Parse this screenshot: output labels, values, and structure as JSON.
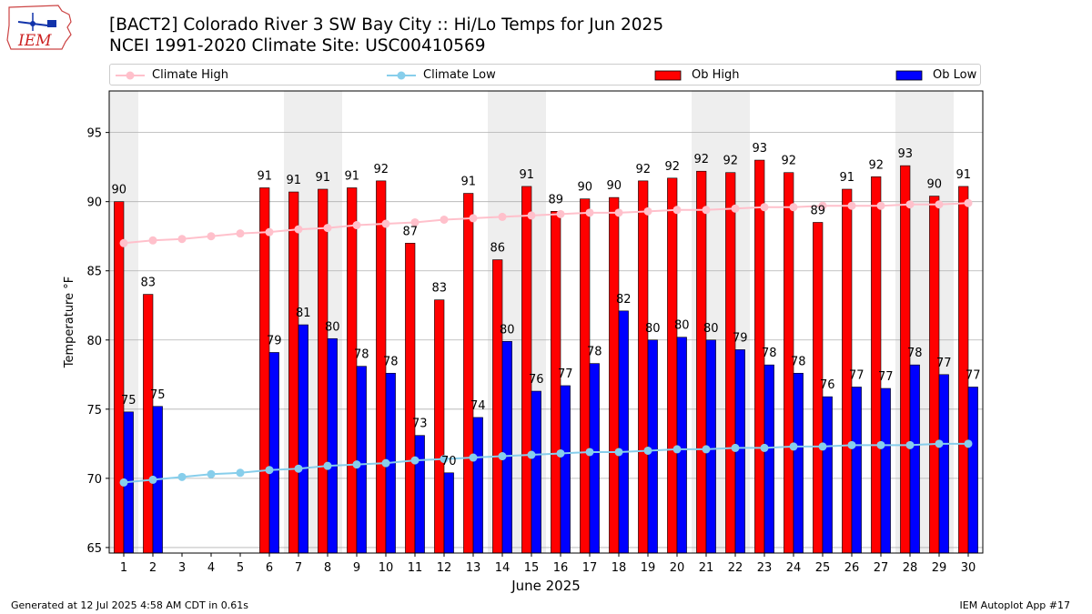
{
  "header": {
    "title_line1": "[BACT2] Colorado River 3 SW Bay City :: Hi/Lo Temps for Jun 2025",
    "title_line2": "NCEI 1991-2020 Climate Site: USC00410569",
    "logo_text": "IEM"
  },
  "footer": {
    "generated": "Generated at 12 Jul 2025 4:58 AM CDT in 0.61s",
    "app": "IEM Autoplot App #17"
  },
  "colors": {
    "ob_high": "#ff0000",
    "ob_low": "#0000ff",
    "climate_high": "#ffc0cb",
    "climate_low": "#87ceeb",
    "weekend_band": "#eeeeee",
    "grid": "#b0b0b0"
  },
  "chart_data": {
    "type": "bar",
    "xlabel": "June 2025",
    "ylabel": "Temperature °F",
    "ylim": [
      64.6,
      98
    ],
    "yticks": [
      65,
      70,
      75,
      80,
      85,
      90,
      95
    ],
    "grid": "horizontal",
    "legend_placement": "top",
    "categories": [
      "1",
      "2",
      "3",
      "4",
      "5",
      "6",
      "7",
      "8",
      "9",
      "10",
      "11",
      "12",
      "13",
      "14",
      "15",
      "16",
      "17",
      "18",
      "19",
      "20",
      "21",
      "22",
      "23",
      "24",
      "25",
      "26",
      "27",
      "28",
      "29",
      "30"
    ],
    "weekend_days": [
      1,
      7,
      8,
      14,
      15,
      21,
      22,
      28,
      29
    ],
    "series": [
      {
        "name": "Ob High",
        "kind": "bar",
        "values": [
          90,
          83.3,
          null,
          null,
          null,
          91,
          90.7,
          90.9,
          91,
          91.5,
          87,
          82.9,
          90.6,
          85.8,
          91.1,
          89.3,
          90.2,
          90.3,
          91.5,
          91.7,
          92.2,
          92.1,
          93,
          92.1,
          88.5,
          90.9,
          91.8,
          92.6,
          90.4,
          91.1
        ],
        "labels": [
          "90",
          "83",
          "",
          "",
          "",
          "91",
          "91",
          "91",
          "91",
          "92",
          "87",
          "83",
          "91",
          "86",
          "91",
          "89",
          "90",
          "90",
          "92",
          "92",
          "92",
          "92",
          "93",
          "92",
          "89",
          "91",
          "92",
          "93",
          "90",
          "91"
        ]
      },
      {
        "name": "Ob Low",
        "kind": "bar",
        "values": [
          74.8,
          75.2,
          null,
          null,
          null,
          79.1,
          81.1,
          80.1,
          78.1,
          77.6,
          73.1,
          70.4,
          74.4,
          79.9,
          76.3,
          76.7,
          78.3,
          82.1,
          80,
          80.2,
          80,
          79.3,
          78.2,
          77.6,
          75.9,
          76.6,
          76.5,
          78.2,
          77.5,
          76.6
        ],
        "labels": [
          "75",
          "75",
          "",
          "",
          "",
          "79",
          "81",
          "80",
          "78",
          "78",
          "73",
          "70",
          "74",
          "80",
          "76",
          "77",
          "78",
          "82",
          "80",
          "80",
          "80",
          "79",
          "78",
          "78",
          "76",
          "77",
          "77",
          "78",
          "77",
          "77"
        ]
      },
      {
        "name": "Climate High",
        "kind": "line",
        "values": [
          87,
          87.2,
          87.3,
          87.5,
          87.7,
          87.8,
          88,
          88.1,
          88.3,
          88.4,
          88.5,
          88.7,
          88.8,
          88.9,
          89,
          89.1,
          89.2,
          89.2,
          89.3,
          89.4,
          89.4,
          89.5,
          89.6,
          89.6,
          89.7,
          89.7,
          89.7,
          89.8,
          89.8,
          89.9
        ]
      },
      {
        "name": "Climate Low",
        "kind": "line",
        "values": [
          69.7,
          69.9,
          70.1,
          70.3,
          70.4,
          70.6,
          70.7,
          70.9,
          71,
          71.1,
          71.3,
          71.4,
          71.5,
          71.6,
          71.7,
          71.8,
          71.9,
          71.9,
          72,
          72.1,
          72.1,
          72.2,
          72.2,
          72.3,
          72.3,
          72.4,
          72.4,
          72.4,
          72.5,
          72.5
        ]
      }
    ]
  }
}
